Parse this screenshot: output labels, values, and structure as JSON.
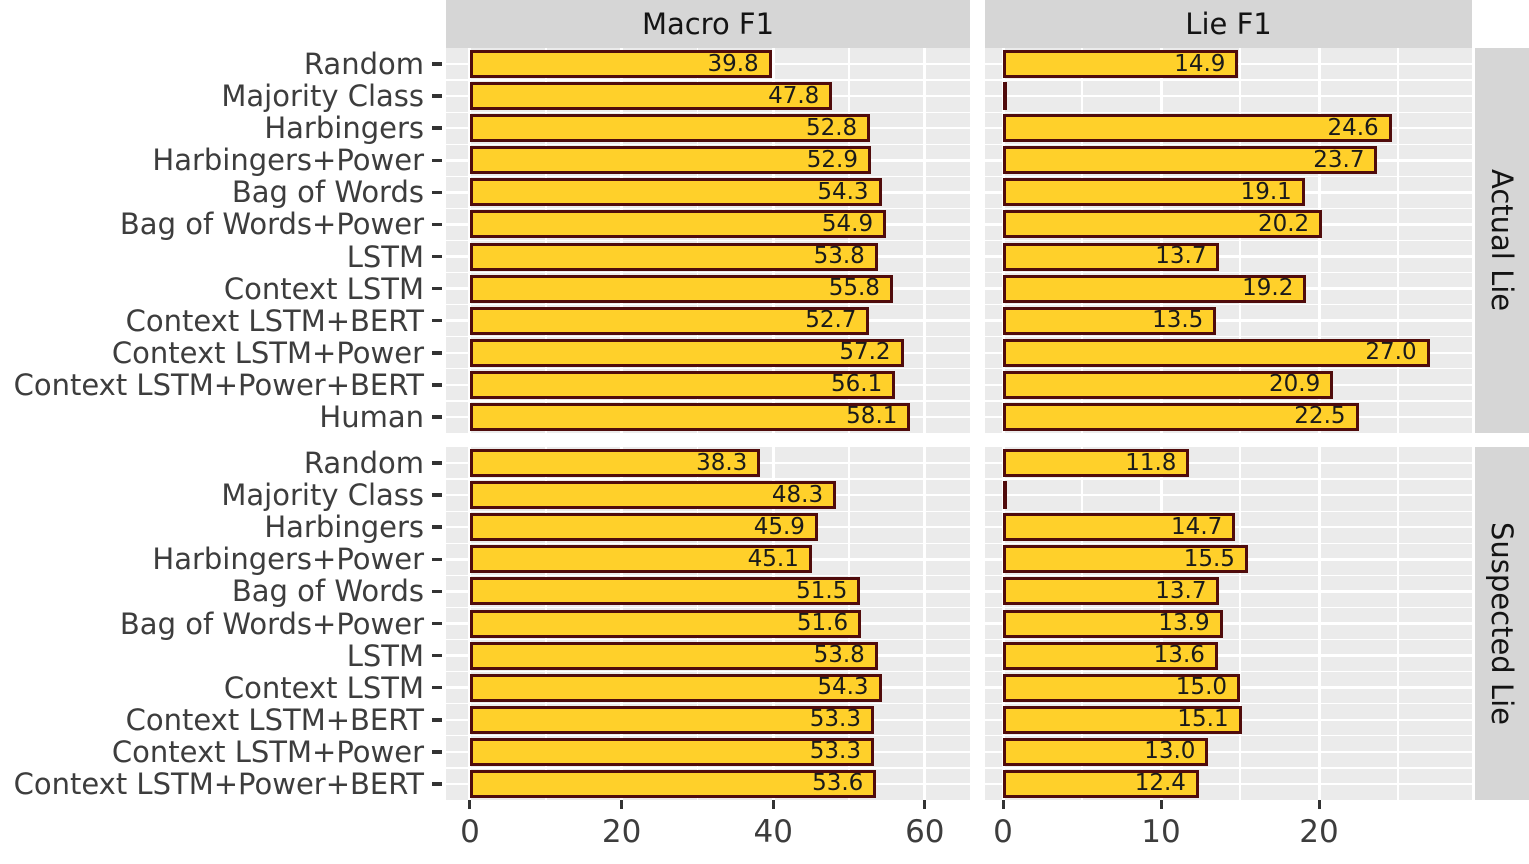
{
  "chart_data": {
    "type": "bar",
    "orientation": "horizontal",
    "bar_fill": "#FFD02A",
    "bar_border": "#500C0C",
    "panel_bg": "#EBEBEB",
    "strip_bg": "#D6D6D6",
    "grid_color": "#FFFFFF",
    "col_facets": [
      {
        "label": "Macro F1",
        "ticks": [
          0,
          20,
          40,
          60
        ],
        "minor_ticks": [
          10,
          30,
          50
        ],
        "axis_range": [
          -3,
          66
        ]
      },
      {
        "label": "Lie F1",
        "ticks": [
          0,
          10,
          20
        ],
        "minor_ticks": [
          5,
          15,
          25
        ],
        "axis_range": [
          -1.1,
          29
        ]
      }
    ],
    "row_facets": [
      {
        "label": "Actual Lie",
        "categories": [
          "Random",
          "Majority Class",
          "Harbingers",
          "Harbingers+Power",
          "Bag of Words",
          "Bag of Words+Power",
          "LSTM",
          "Context LSTM",
          "Context LSTM+BERT",
          "Context LSTM+Power",
          "Context LSTM+Power+BERT",
          "Human"
        ],
        "series": [
          {
            "name": "Macro F1",
            "values": [
              "39.8",
              "47.8",
              "52.8",
              "52.9",
              "54.3",
              "54.9",
              "53.8",
              "55.8",
              "52.7",
              "57.2",
              "56.1",
              "58.1"
            ]
          },
          {
            "name": "Lie F1",
            "values": [
              "14.9",
              null,
              "24.6",
              "23.7",
              "19.1",
              "20.2",
              "13.7",
              "19.2",
              "13.5",
              "27.0",
              "20.9",
              "22.5"
            ]
          }
        ]
      },
      {
        "label": "Suspected Lie",
        "categories": [
          "Random",
          "Majority Class",
          "Harbingers",
          "Harbingers+Power",
          "Bag of Words",
          "Bag of Words+Power",
          "LSTM",
          "Context LSTM",
          "Context LSTM+BERT",
          "Context LSTM+Power",
          "Context LSTM+Power+BERT"
        ],
        "series": [
          {
            "name": "Macro F1",
            "values": [
              "38.3",
              "48.3",
              "45.9",
              "45.1",
              "51.5",
              "51.6",
              "53.8",
              "54.3",
              "53.3",
              "53.3",
              "53.6"
            ]
          },
          {
            "name": "Lie F1",
            "values": [
              "11.8",
              null,
              "14.7",
              "15.5",
              "13.7",
              "13.9",
              "13.6",
              "15.0",
              "15.1",
              "13.0",
              "12.4"
            ]
          }
        ]
      }
    ]
  }
}
